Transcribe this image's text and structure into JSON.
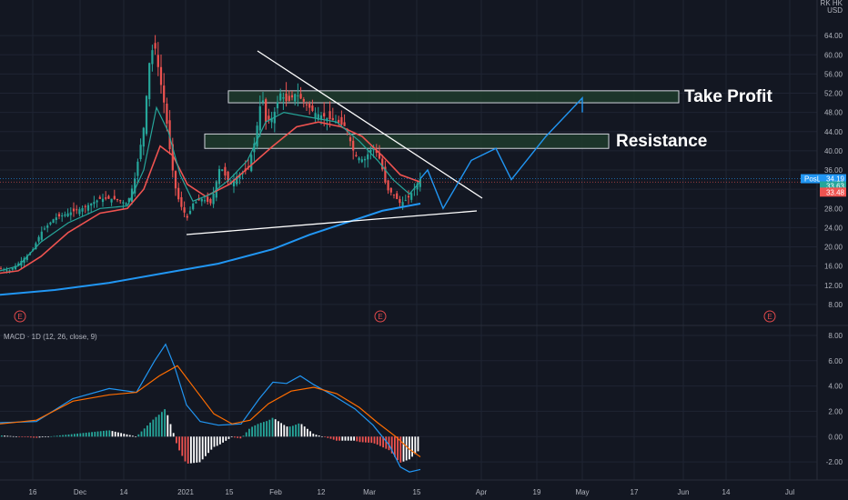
{
  "header": {
    "currency_line1": "RK HK",
    "currency_line2": "USD"
  },
  "annotations": {
    "take_profit": "Take Profit",
    "resistance": "Resistance"
  },
  "macd_title": "MACD · 1D (12, 26, close, 9)",
  "earnings_marker": "E",
  "price_badges": {
    "position_label": "PosL",
    "last_price": "34.19",
    "ma_short": "33.63",
    "ma_long": "33.48"
  },
  "colors": {
    "background": "#131722",
    "up": "#26a69a",
    "down": "#ef5350",
    "ma_fast": "#26a69a",
    "ma_slow": "#ef5350",
    "ma_long": "#2196f3",
    "macd_line": "#2196f3",
    "signal_line": "#ff6d00",
    "zone_fill": "#1e3b2c",
    "projection": "#2196f3"
  },
  "chart_data": [
    {
      "type": "candlestick",
      "ylim": [
        4,
        68
      ],
      "y_ticks": [
        "8.00",
        "12.00",
        "16.00",
        "20.00",
        "24.00",
        "28.00",
        "32.00",
        "36.00",
        "40.00",
        "44.00",
        "48.00",
        "52.00",
        "56.00",
        "60.00",
        "64.00"
      ],
      "x_ticks": [
        "16",
        "Dec",
        "14",
        "2021",
        "15",
        "Feb",
        "12",
        "Mar",
        "15",
        "Apr",
        "19",
        "May",
        "17",
        "Jun",
        "14",
        "Jul"
      ],
      "price_path": [
        [
          0,
          15.5
        ],
        [
          10,
          15
        ],
        [
          20,
          16.5
        ],
        [
          35,
          19
        ],
        [
          45,
          23
        ],
        [
          60,
          26
        ],
        [
          75,
          27
        ],
        [
          90,
          28
        ],
        [
          100,
          29
        ],
        [
          110,
          30
        ],
        [
          125,
          30
        ],
        [
          140,
          29
        ],
        [
          148,
          34
        ],
        [
          158,
          45
        ],
        [
          165,
          60
        ],
        [
          170,
          62
        ],
        [
          175,
          56
        ],
        [
          182,
          48
        ],
        [
          188,
          38
        ],
        [
          194,
          31
        ],
        [
          200,
          28
        ],
        [
          206,
          26
        ],
        [
          212,
          29
        ],
        [
          222,
          30
        ],
        [
          232,
          29
        ],
        [
          242,
          37
        ],
        [
          252,
          33
        ],
        [
          262,
          35
        ],
        [
          272,
          36
        ],
        [
          280,
          42
        ],
        [
          288,
          52
        ],
        [
          292,
          46
        ],
        [
          300,
          47
        ],
        [
          308,
          52
        ],
        [
          316,
          50
        ],
        [
          325,
          52
        ],
        [
          335,
          50
        ],
        [
          345,
          48
        ],
        [
          358,
          47
        ],
        [
          370,
          46
        ],
        [
          380,
          45
        ],
        [
          390,
          39
        ],
        [
          400,
          38
        ],
        [
          410,
          41
        ],
        [
          418,
          38
        ],
        [
          425,
          32
        ],
        [
          432,
          31
        ],
        [
          440,
          29
        ],
        [
          448,
          30
        ],
        [
          455,
          32
        ],
        [
          462,
          34.19
        ]
      ],
      "ma_fast": [
        [
          0,
          15
        ],
        [
          20,
          16
        ],
        [
          45,
          21
        ],
        [
          75,
          25
        ],
        [
          110,
          28
        ],
        [
          140,
          28.5
        ],
        [
          158,
          36
        ],
        [
          172,
          49
        ],
        [
          185,
          44
        ],
        [
          198,
          35
        ],
        [
          212,
          29.5
        ],
        [
          232,
          31
        ],
        [
          252,
          34
        ],
        [
          272,
          38
        ],
        [
          292,
          46
        ],
        [
          312,
          48
        ],
        [
          340,
          47
        ],
        [
          370,
          46
        ],
        [
          395,
          42
        ],
        [
          415,
          38
        ],
        [
          432,
          34
        ],
        [
          450,
          31
        ],
        [
          462,
          33.63
        ]
      ],
      "ma_slow": [
        [
          0,
          14.5
        ],
        [
          20,
          15
        ],
        [
          45,
          18
        ],
        [
          75,
          23
        ],
        [
          110,
          27
        ],
        [
          140,
          28
        ],
        [
          158,
          32
        ],
        [
          176,
          41
        ],
        [
          190,
          39
        ],
        [
          206,
          33
        ],
        [
          226,
          30.5
        ],
        [
          252,
          33
        ],
        [
          276,
          37
        ],
        [
          300,
          41
        ],
        [
          326,
          45
        ],
        [
          350,
          46
        ],
        [
          375,
          45
        ],
        [
          398,
          43
        ],
        [
          420,
          39
        ],
        [
          440,
          35
        ],
        [
          462,
          33.48
        ]
      ],
      "ma_long": [
        [
          0,
          10
        ],
        [
          60,
          11
        ],
        [
          120,
          12.5
        ],
        [
          180,
          14.5
        ],
        [
          240,
          16.5
        ],
        [
          300,
          19.5
        ],
        [
          340,
          22.5
        ],
        [
          380,
          25
        ],
        [
          420,
          27.5
        ],
        [
          462,
          29
        ]
      ],
      "resistance_zone": [
        40.5,
        43.5
      ],
      "take_profit_zone": [
        50,
        52.5
      ],
      "projection": [
        [
          462,
          34.19
        ],
        [
          470,
          36
        ],
        [
          487,
          28
        ],
        [
          518,
          38
        ],
        [
          545,
          40.5
        ],
        [
          562,
          34
        ],
        [
          600,
          43
        ],
        [
          640,
          51
        ],
        [
          640,
          48
        ]
      ]
    },
    {
      "type": "histogram+line",
      "title": "MACD · 1D (12, 26, close, 9)",
      "ylim": [
        -3,
        8.5
      ],
      "y_ticks": [
        "-2.00",
        "0.00",
        "2.00",
        "4.00",
        "6.00",
        "8.00"
      ],
      "macd": [
        [
          0,
          1.1
        ],
        [
          40,
          1.2
        ],
        [
          80,
          3.0
        ],
        [
          120,
          3.8
        ],
        [
          150,
          3.5
        ],
        [
          170,
          6.0
        ],
        [
          182,
          7.3
        ],
        [
          192,
          5.5
        ],
        [
          205,
          2.5
        ],
        [
          220,
          1.2
        ],
        [
          240,
          0.9
        ],
        [
          265,
          1.0
        ],
        [
          285,
          3.0
        ],
        [
          300,
          4.3
        ],
        [
          315,
          4.2
        ],
        [
          330,
          4.8
        ],
        [
          345,
          4.1
        ],
        [
          365,
          3.3
        ],
        [
          390,
          2.2
        ],
        [
          410,
          0.9
        ],
        [
          428,
          -0.7
        ],
        [
          440,
          -2.4
        ],
        [
          450,
          -2.8
        ],
        [
          462,
          -2.6
        ]
      ],
      "signal": [
        [
          0,
          1.0
        ],
        [
          40,
          1.3
        ],
        [
          80,
          2.8
        ],
        [
          120,
          3.3
        ],
        [
          150,
          3.5
        ],
        [
          175,
          4.8
        ],
        [
          195,
          5.6
        ],
        [
          215,
          3.7
        ],
        [
          235,
          1.8
        ],
        [
          255,
          1.0
        ],
        [
          275,
          1.3
        ],
        [
          295,
          2.6
        ],
        [
          320,
          3.6
        ],
        [
          345,
          3.9
        ],
        [
          370,
          3.4
        ],
        [
          395,
          2.3
        ],
        [
          415,
          1.1
        ],
        [
          435,
          0.0
        ],
        [
          450,
          -1.0
        ],
        [
          462,
          -1.6
        ]
      ]
    }
  ]
}
